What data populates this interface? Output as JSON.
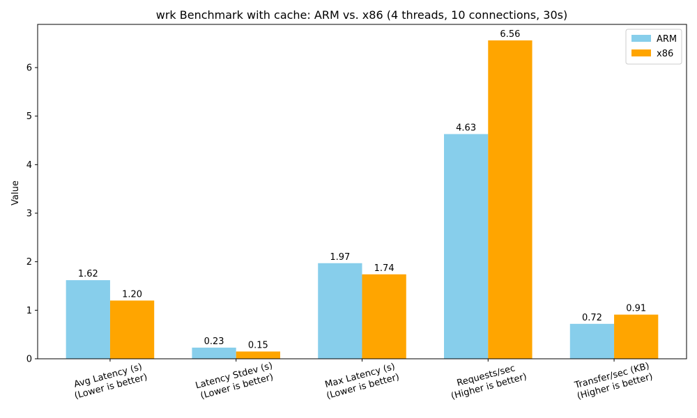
{
  "chart_data": {
    "type": "bar",
    "title": "wrk Benchmark with cache: ARM vs. x86 (4 threads, 10 connections, 30s)",
    "ylabel": "Value",
    "xlabel": "",
    "ylim": [
      0,
      6.89
    ],
    "yticks": [
      "0",
      "1",
      "2",
      "3",
      "4",
      "5",
      "6"
    ],
    "categories": [
      [
        "Avg Latency (s)",
        "(Lower is better)"
      ],
      [
        "Latency Stdev (s)",
        "(Lower is better)"
      ],
      [
        "Max Latency (s)",
        "(Lower is better)"
      ],
      [
        "Requests/sec",
        "(Higher is better)"
      ],
      [
        "Transfer/sec (KB)",
        "(Higher is better)"
      ]
    ],
    "series": [
      {
        "name": "ARM",
        "color": "#87ceeb",
        "values": [
          1.62,
          0.23,
          1.97,
          4.63,
          0.72
        ],
        "labels": [
          "1.62",
          "0.23",
          "1.97",
          "4.63",
          "0.72"
        ]
      },
      {
        "name": "x86",
        "color": "#ffa500",
        "values": [
          1.2,
          0.15,
          1.74,
          6.56,
          0.91
        ],
        "labels": [
          "1.20",
          "0.15",
          "1.74",
          "6.56",
          "0.91"
        ]
      }
    ],
    "legend": {
      "position": "top-right"
    }
  }
}
